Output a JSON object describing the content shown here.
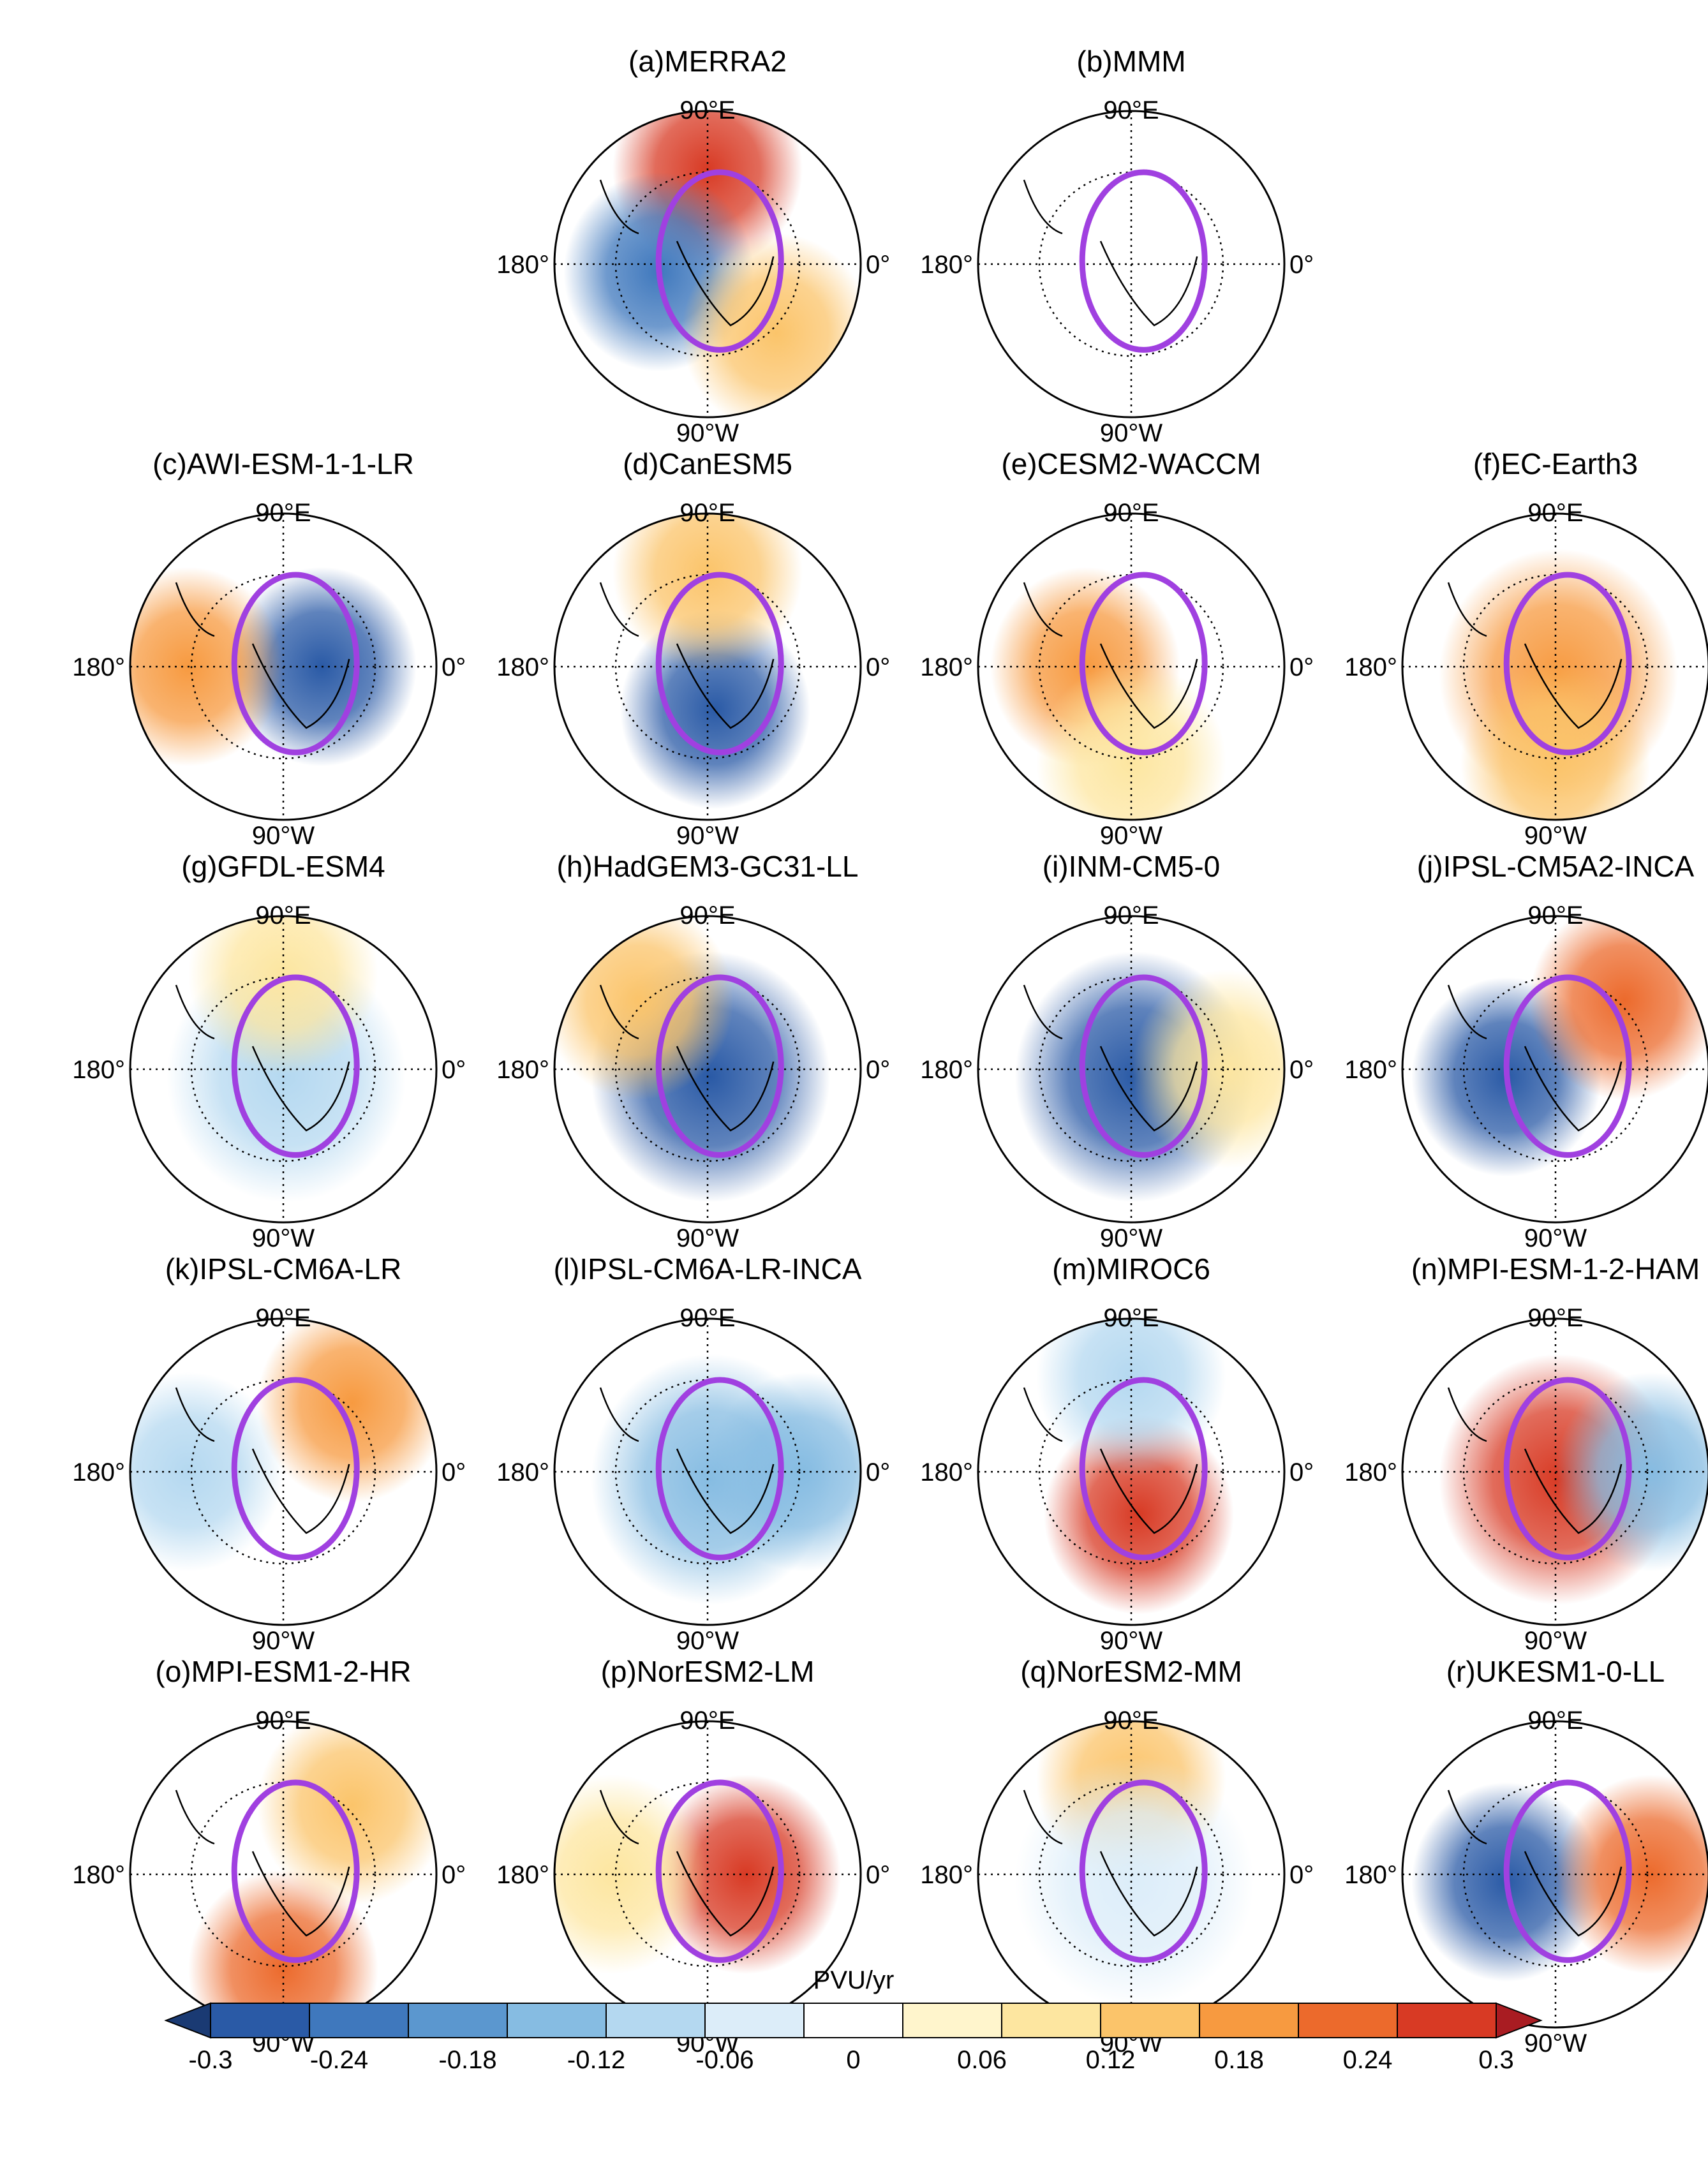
{
  "chart_data": {
    "type": "heatmap",
    "projection": "north polar stereographic",
    "colorbar": {
      "label": "PVU/yr",
      "ticks": [
        "-0.3",
        "-0.24",
        "-0.18",
        "-0.12",
        "-0.06",
        "0",
        "0.06",
        "0.12",
        "0.18",
        "0.24",
        "0.3"
      ],
      "colors": [
        "#1a3a73",
        "#2a5aa6",
        "#3f78bd",
        "#5b97cf",
        "#86bce2",
        "#b4d8f0",
        "#dcedf9",
        "#ffffff",
        "#fff5cc",
        "#fde6a0",
        "#fbc46a",
        "#f79a40",
        "#ec6a2c",
        "#d83a24",
        "#a91c22"
      ]
    },
    "axis_labels": {
      "top": "90°E",
      "left": "180°",
      "right": "0°",
      "bottom": "90°W"
    },
    "panels": [
      {
        "id": "a",
        "title": "(a)MERRA2",
        "pattern": [
          {
            "dir": "up",
            "v": 0.26
          },
          {
            "dir": "left-center",
            "v": -0.22
          },
          {
            "dir": "lower-right",
            "v": 0.12
          }
        ]
      },
      {
        "id": "b",
        "title": "(b)MMM",
        "pattern": [
          {
            "dir": "up",
            "v": 0.02
          },
          {
            "dir": "center",
            "v": -0.02
          }
        ]
      },
      {
        "id": "c",
        "title": "(c)AWI-ESM-1-1-LR",
        "pattern": [
          {
            "dir": "center-right",
            "v": -0.3
          },
          {
            "dir": "left",
            "v": 0.2
          }
        ]
      },
      {
        "id": "d",
        "title": "(d)CanESM5",
        "pattern": [
          {
            "dir": "center-down",
            "v": -0.28
          },
          {
            "dir": "up",
            "v": 0.12
          }
        ]
      },
      {
        "id": "e",
        "title": "(e)CESM2-WACCM",
        "pattern": [
          {
            "dir": "center-left",
            "v": 0.2
          },
          {
            "dir": "down",
            "v": 0.1
          }
        ]
      },
      {
        "id": "f",
        "title": "(f)EC-Earth3",
        "pattern": [
          {
            "dir": "center",
            "v": 0.18
          },
          {
            "dir": "down",
            "v": 0.16
          }
        ]
      },
      {
        "id": "g",
        "title": "(g)GFDL-ESM4",
        "pattern": [
          {
            "dir": "center",
            "v": -0.08
          },
          {
            "dir": "up",
            "v": 0.08
          }
        ]
      },
      {
        "id": "h",
        "title": "(h)HadGEM3-GC31-LL",
        "pattern": [
          {
            "dir": "center",
            "v": -0.3
          },
          {
            "dir": "upper-left",
            "v": 0.16
          }
        ]
      },
      {
        "id": "i",
        "title": "(i)INM-CM5-0",
        "pattern": [
          {
            "dir": "center",
            "v": -0.28
          },
          {
            "dir": "right",
            "v": 0.1
          }
        ]
      },
      {
        "id": "j",
        "title": "(j)IPSL-CM5A2-INCA",
        "pattern": [
          {
            "dir": "left-center",
            "v": -0.3
          },
          {
            "dir": "upper-right",
            "v": 0.24
          }
        ]
      },
      {
        "id": "k",
        "title": "(k)IPSL-CM6A-LR",
        "pattern": [
          {
            "dir": "upper-right",
            "v": 0.2
          },
          {
            "dir": "left",
            "v": -0.08
          }
        ]
      },
      {
        "id": "l",
        "title": "(l)IPSL-CM6A-LR-INCA",
        "pattern": [
          {
            "dir": "center",
            "v": -0.14
          },
          {
            "dir": "right",
            "v": -0.14
          }
        ]
      },
      {
        "id": "m",
        "title": "(m)MIROC6",
        "pattern": [
          {
            "dir": "center-down",
            "v": 0.26
          },
          {
            "dir": "up",
            "v": -0.08
          }
        ]
      },
      {
        "id": "n",
        "title": "(n)MPI-ESM-1-2-HAM",
        "pattern": [
          {
            "dir": "center",
            "v": 0.3
          },
          {
            "dir": "right",
            "v": -0.12
          }
        ]
      },
      {
        "id": "o",
        "title": "(o)MPI-ESM1-2-HR",
        "pattern": [
          {
            "dir": "down",
            "v": 0.22
          },
          {
            "dir": "upper-right",
            "v": 0.14
          }
        ]
      },
      {
        "id": "p",
        "title": "(p)NorESM2-LM",
        "pattern": [
          {
            "dir": "center-right",
            "v": 0.26
          },
          {
            "dir": "left",
            "v": 0.1
          }
        ]
      },
      {
        "id": "q",
        "title": "(q)NorESM2-MM",
        "pattern": [
          {
            "dir": "up",
            "v": 0.14
          },
          {
            "dir": "center",
            "v": -0.06
          }
        ]
      },
      {
        "id": "r",
        "title": "(r)UKESM1-0-LL",
        "pattern": [
          {
            "dir": "left-center",
            "v": -0.28
          },
          {
            "dir": "right",
            "v": 0.22
          }
        ]
      }
    ]
  }
}
